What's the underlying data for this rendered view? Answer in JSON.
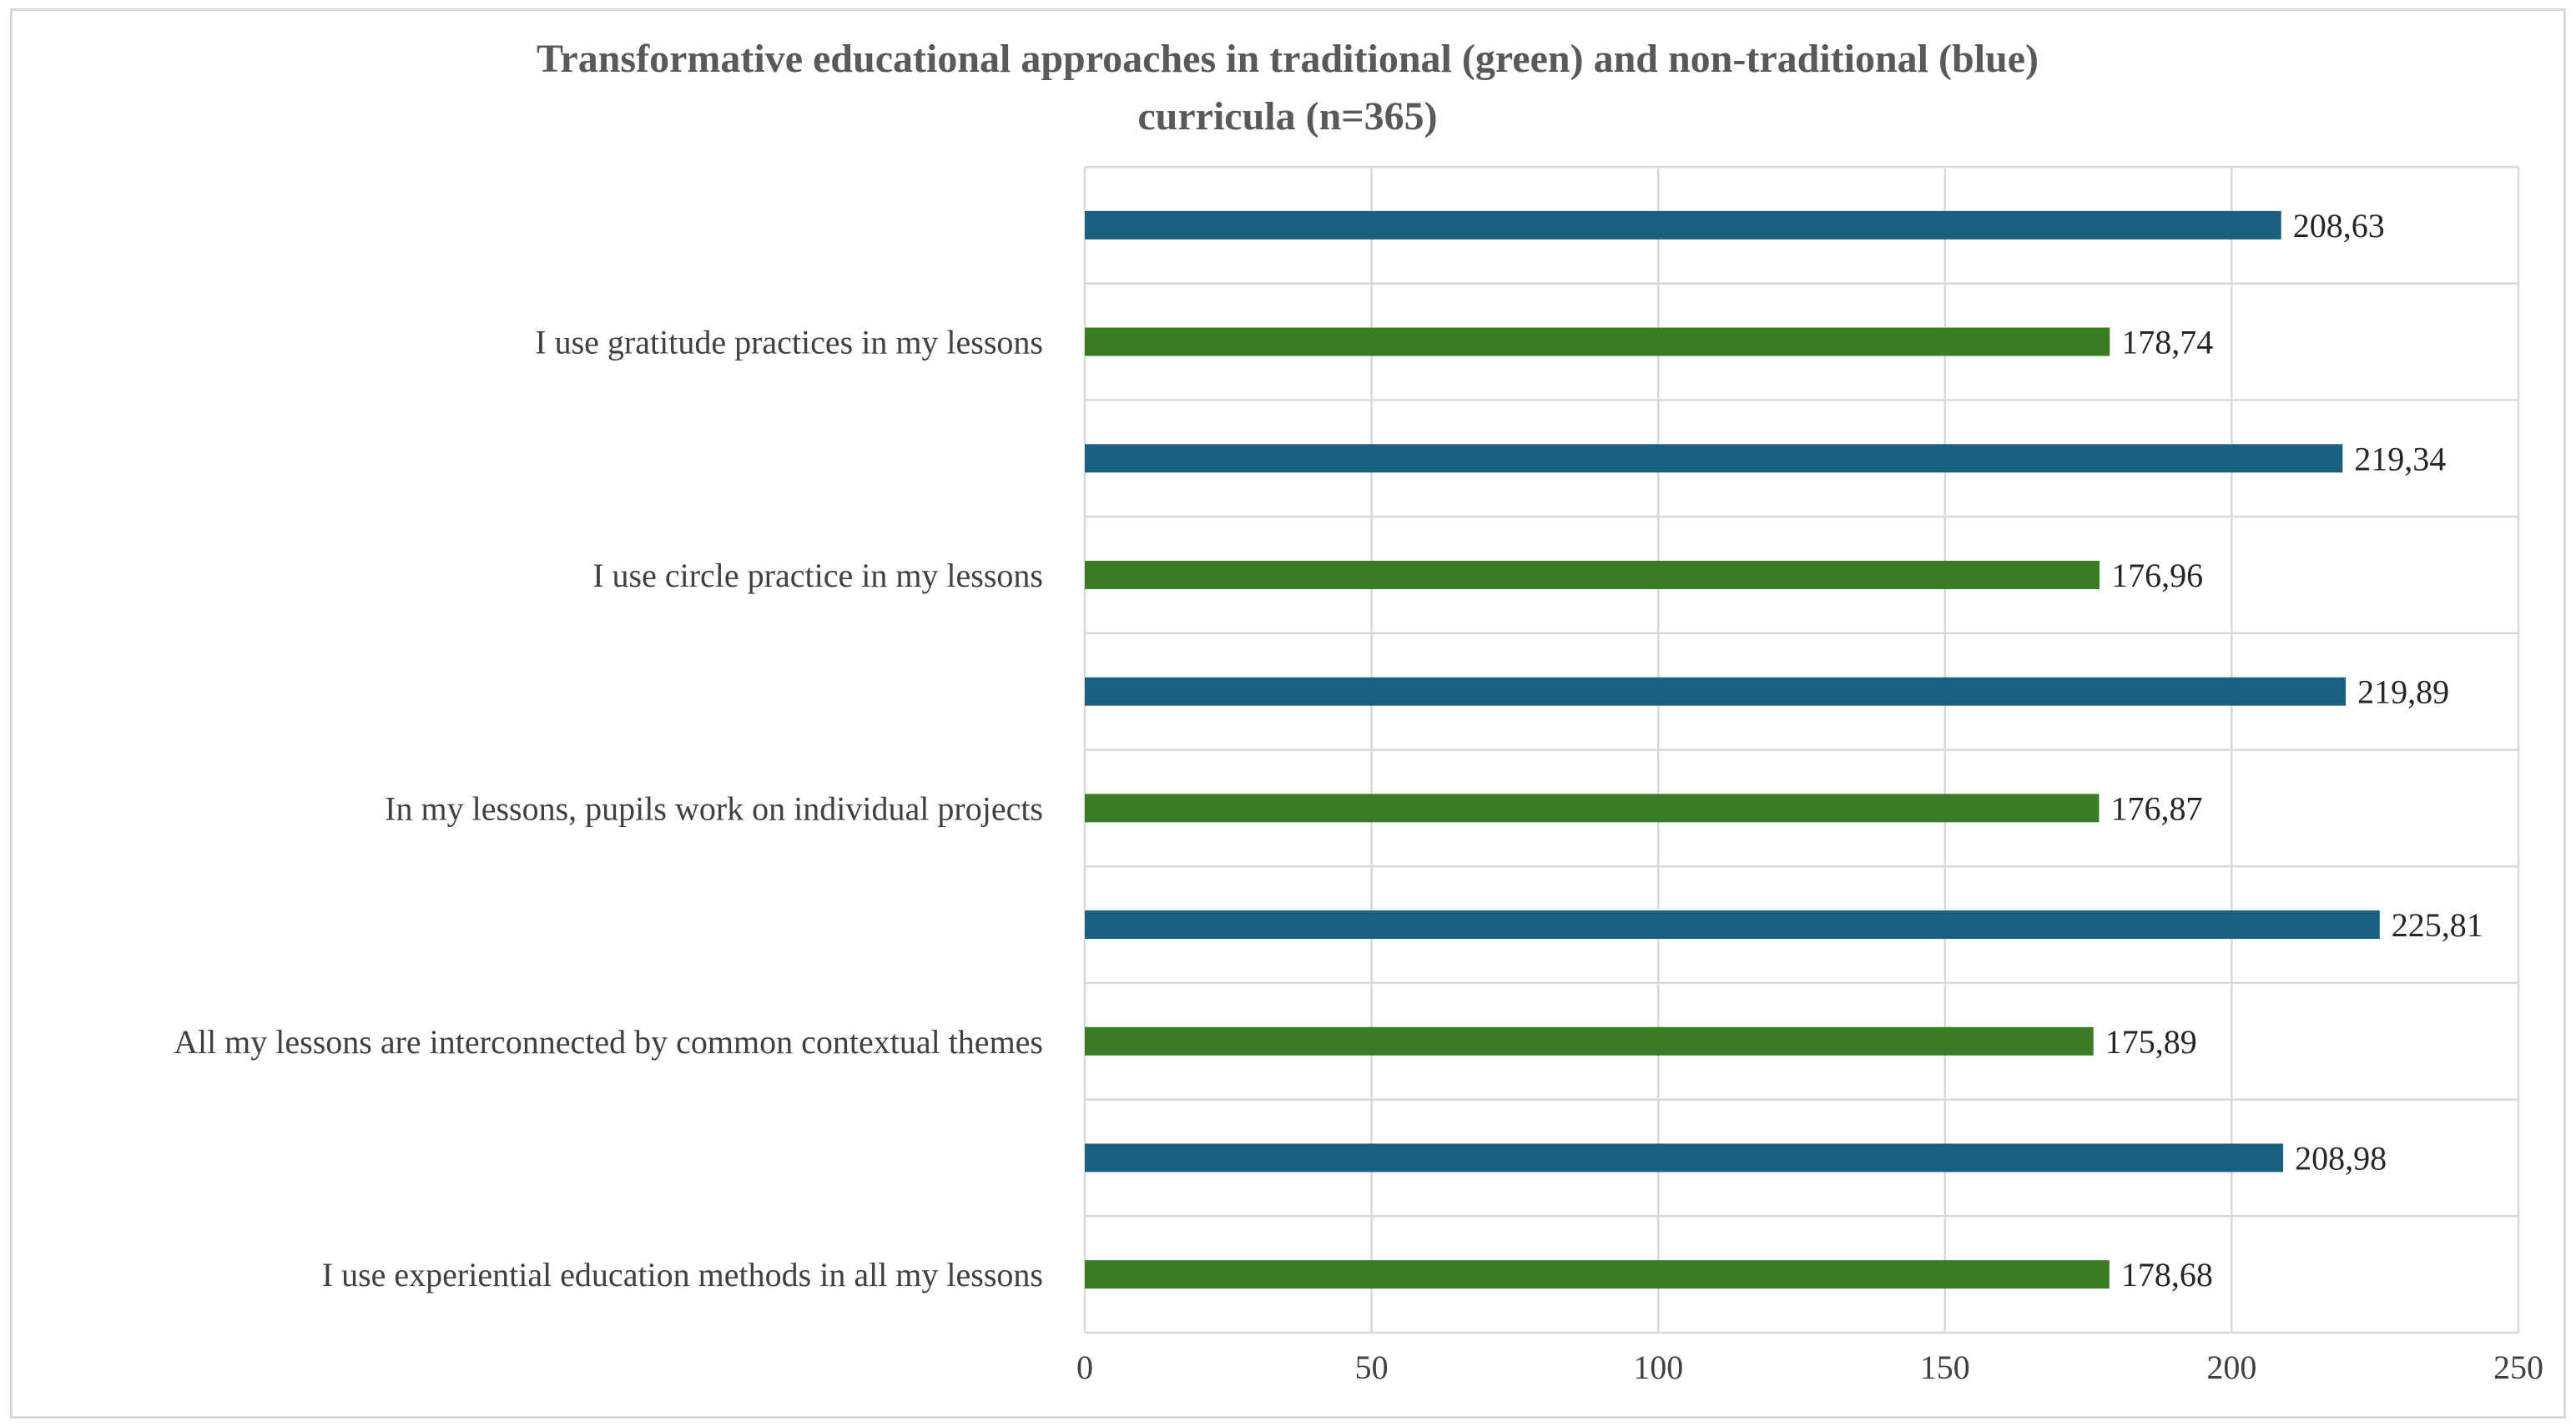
{
  "chart_data": {
    "type": "bar",
    "orientation": "horizontal",
    "title": "Transformative educational approaches in traditional (green) and non-traditional (blue) curricula (n=365)",
    "title_lines": [
      "Transformative educational approaches in traditional (green) and non-traditional (blue)",
      "curricula (n=365)"
    ],
    "categories": [
      "I use gratitude practices in my lessons",
      "I use circle practice in my lessons",
      "In my lessons, pupils work on individual projects",
      "All my lessons are interconnected by common contextual themes",
      "I use experiential education methods in all my lessons"
    ],
    "series": [
      {
        "name": "non-traditional (blue)",
        "color": "#185f80",
        "values": [
          208.63,
          219.34,
          219.89,
          225.81,
          208.98
        ],
        "labels": [
          "208,63",
          "219,34",
          "219,89",
          "225,81",
          "208,98"
        ]
      },
      {
        "name": "traditional (green)",
        "color": "#3a7d22",
        "values": [
          178.74,
          176.96,
          176.87,
          175.89,
          178.68
        ],
        "labels": [
          "178,74",
          "176,96",
          "176,87",
          "175,89",
          "178,68"
        ]
      }
    ],
    "xlim": [
      0,
      250
    ],
    "xticks": [
      0,
      50,
      100,
      150,
      200,
      250
    ],
    "xtick_labels": [
      "0",
      "50",
      "100",
      "150",
      "200",
      "250"
    ],
    "xlabel": "",
    "ylabel": "",
    "grid": true,
    "legend": "none"
  }
}
